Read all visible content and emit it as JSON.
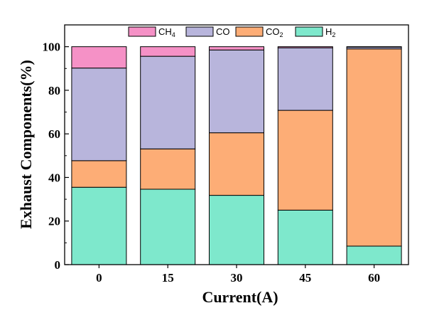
{
  "chart_data": {
    "type": "bar",
    "stacked": true,
    "categories": [
      "0",
      "15",
      "30",
      "45",
      "60"
    ],
    "series": [
      {
        "name": "H2",
        "label_main": "H",
        "label_sub": "2",
        "color": "#7ee8cc",
        "values": [
          35.5,
          34.6,
          31.8,
          25.0,
          8.5
        ]
      },
      {
        "name": "CO2",
        "label_main": "CO",
        "label_sub": "2",
        "color": "#fdad76",
        "values": [
          12.2,
          18.5,
          28.7,
          45.8,
          90.5
        ]
      },
      {
        "name": "CO",
        "label_main": "CO",
        "label_sub": "",
        "color": "#b8b5dc",
        "values": [
          42.5,
          42.5,
          38.0,
          28.7,
          0.8
        ]
      },
      {
        "name": "CH4",
        "label_main": "CH",
        "label_sub": "4",
        "color": "#f591c6",
        "values": [
          9.8,
          4.4,
          1.5,
          0.5,
          0.2
        ]
      }
    ],
    "legend_order": [
      "CH4",
      "CO",
      "CO2",
      "H2"
    ],
    "xlabel": "Current(A)",
    "ylabel": "Exhaust Components(%)",
    "ylim": [
      0,
      110
    ],
    "yticks": [
      "0",
      "20",
      "40",
      "60",
      "80",
      "100"
    ],
    "grid": false,
    "legend_position": "top"
  }
}
